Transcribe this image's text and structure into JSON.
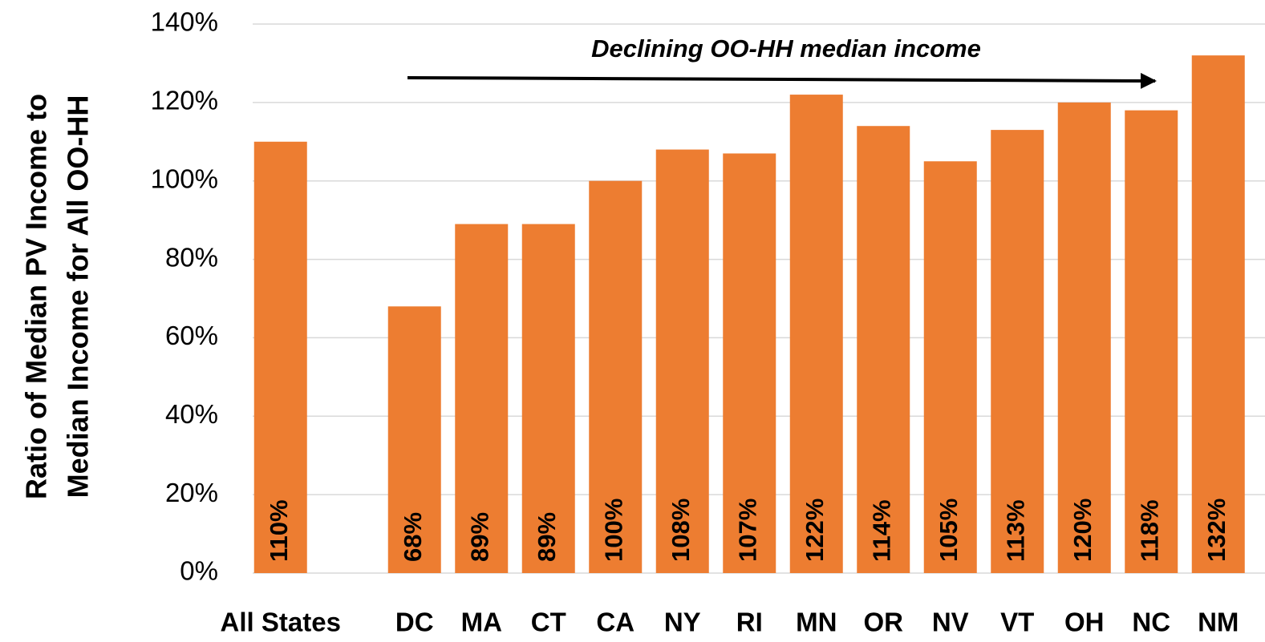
{
  "chart_data": {
    "type": "bar",
    "y_axis_label": [
      "Ratio of Median PV Income to",
      "Median  Income for All OO-HH"
    ],
    "annotation": "Declining OO-HH median income",
    "categories": [
      "All States",
      null,
      "DC",
      "MA",
      "CT",
      "CA",
      "NY",
      "RI",
      "MN",
      "OR",
      "NV",
      "VT",
      "OH",
      "NC",
      "NM"
    ],
    "values": [
      110,
      null,
      68,
      89,
      89,
      100,
      108,
      107,
      122,
      114,
      105,
      113,
      120,
      118,
      132
    ],
    "value_labels": [
      "110%",
      null,
      "68%",
      "89%",
      "89%",
      "100%",
      "108%",
      "107%",
      "122%",
      "114%",
      "105%",
      "113%",
      "120%",
      "118%",
      "132%"
    ],
    "color": "#ed7d31",
    "ylim": [
      0,
      140
    ],
    "yticks": [
      {
        "value": 0,
        "label": "0%"
      },
      {
        "value": 20,
        "label": "20%"
      },
      {
        "value": 40,
        "label": "40%"
      },
      {
        "value": 60,
        "label": "60%"
      },
      {
        "value": 80,
        "label": "80%"
      },
      {
        "value": 100,
        "label": "100%"
      },
      {
        "value": 120,
        "label": "120%"
      },
      {
        "value": 140,
        "label": "140%"
      }
    ],
    "grid": true
  }
}
